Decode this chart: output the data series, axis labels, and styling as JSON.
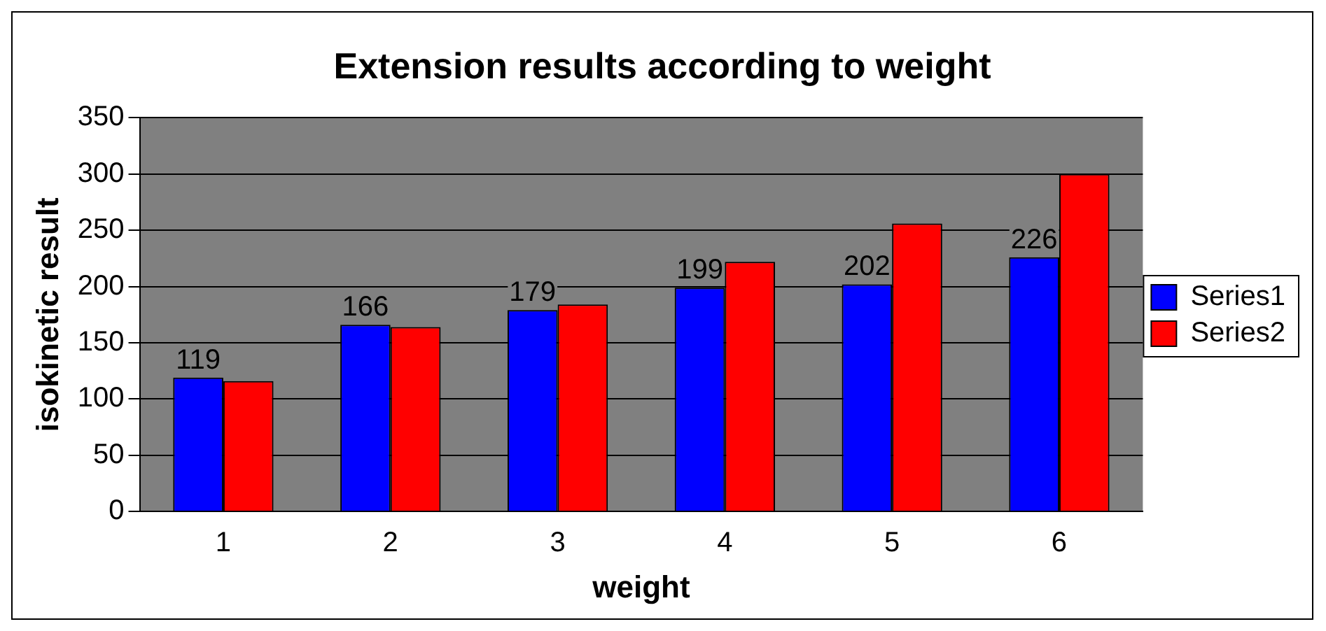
{
  "chart_data": {
    "type": "bar",
    "title": "Extension results according to weight",
    "xlabel": "weight",
    "ylabel": "isokinetic result",
    "categories": [
      "1",
      "2",
      "3",
      "4",
      "5",
      "6"
    ],
    "series": [
      {
        "name": "Series1",
        "color": "#0000ff",
        "values": [
          119,
          166,
          179,
          199,
          202,
          226
        ],
        "value_labels": [
          "119",
          "166",
          "179",
          "199",
          "202",
          "226"
        ]
      },
      {
        "name": "Series2",
        "color": "#ff0000",
        "values": [
          116,
          164,
          184,
          222,
          256,
          300
        ]
      }
    ],
    "ylim": [
      0,
      350
    ],
    "yticks": [
      0,
      50,
      100,
      150,
      200,
      250,
      300,
      350
    ],
    "grid": "y",
    "legend": "right"
  }
}
